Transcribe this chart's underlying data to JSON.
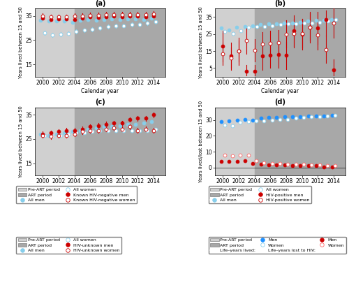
{
  "years": [
    2000,
    2001,
    2002,
    2003,
    2004,
    2005,
    2006,
    2007,
    2008,
    2009,
    2010,
    2011,
    2012,
    2013,
    2014
  ],
  "pre_art_end": 2004,
  "xlim": [
    1999,
    2015.5
  ],
  "pre_art_color": "#d0d0d0",
  "art_color": "#a8a8a8",
  "panel_a": {
    "title": "(a)",
    "ylabel": "Years lived between 15 and 50",
    "ylim": [
      10,
      38
    ],
    "yticks": [
      15,
      25,
      35
    ],
    "all_men": [
      33.2,
      32.8,
      33.0,
      32.8,
      32.2,
      33.2,
      33.5,
      33.2,
      33.5,
      33.8,
      33.5,
      33.8,
      33.8,
      33.5,
      34.0
    ],
    "all_men_lo": [
      32.8,
      32.4,
      32.6,
      32.4,
      31.8,
      32.8,
      33.1,
      32.8,
      33.1,
      33.4,
      33.1,
      33.4,
      33.4,
      33.1,
      33.6
    ],
    "all_men_hi": [
      33.6,
      33.2,
      33.4,
      33.2,
      32.6,
      33.6,
      33.9,
      33.6,
      33.9,
      34.2,
      33.9,
      34.2,
      34.2,
      33.9,
      34.4
    ],
    "all_women": [
      28.0,
      27.2,
      27.5,
      27.8,
      28.5,
      29.0,
      29.5,
      30.0,
      30.5,
      30.8,
      31.0,
      31.5,
      31.5,
      32.0,
      32.5
    ],
    "all_women_lo": [
      27.2,
      26.4,
      26.7,
      27.0,
      27.7,
      28.2,
      28.7,
      29.2,
      29.7,
      30.0,
      30.2,
      30.7,
      30.7,
      31.2,
      31.7
    ],
    "all_women_hi": [
      28.8,
      28.0,
      28.3,
      28.6,
      29.3,
      29.8,
      30.3,
      30.8,
      31.3,
      31.6,
      31.8,
      32.3,
      32.3,
      32.8,
      33.3
    ],
    "hiv_neg_men": [
      34.0,
      33.5,
      33.8,
      33.8,
      33.5,
      34.0,
      34.5,
      34.2,
      34.5,
      34.8,
      34.5,
      34.8,
      34.8,
      34.5,
      35.0
    ],
    "hiv_neg_men_lo": [
      33.5,
      33.0,
      33.3,
      33.3,
      33.0,
      33.5,
      34.0,
      33.7,
      34.0,
      34.3,
      34.0,
      34.3,
      34.3,
      34.0,
      34.5
    ],
    "hiv_neg_men_hi": [
      34.5,
      34.0,
      34.3,
      34.3,
      34.0,
      34.5,
      35.0,
      34.7,
      35.0,
      35.3,
      35.0,
      35.3,
      35.3,
      35.0,
      35.5
    ],
    "hiv_neg_women": [
      35.0,
      34.5,
      34.5,
      34.5,
      35.0,
      35.0,
      35.2,
      35.2,
      35.5,
      35.5,
      35.5,
      35.5,
      35.5,
      35.5,
      35.8
    ],
    "hiv_neg_women_lo": [
      34.0,
      33.5,
      33.5,
      33.5,
      34.0,
      34.0,
      34.2,
      34.2,
      34.5,
      34.5,
      34.5,
      34.5,
      34.5,
      34.5,
      34.8
    ],
    "hiv_neg_women_hi": [
      36.0,
      35.5,
      35.5,
      35.5,
      36.0,
      36.0,
      36.2,
      36.2,
      36.5,
      36.5,
      36.5,
      36.5,
      36.5,
      36.5,
      36.8
    ]
  },
  "panel_b": {
    "title": "(b)",
    "ylabel": "Years lived between 15 and 50",
    "ylim": [
      0,
      40
    ],
    "yticks": [
      5,
      15,
      25,
      35
    ],
    "all_men": [
      28.5,
      27.5,
      29.0,
      29.5,
      30.0,
      30.5,
      31.0,
      31.0,
      31.5,
      31.5,
      32.0,
      32.5,
      33.0,
      33.0,
      33.5
    ],
    "all_men_lo": [
      28.0,
      27.0,
      28.5,
      29.0,
      29.5,
      30.0,
      30.5,
      30.5,
      31.0,
      31.0,
      31.5,
      32.0,
      32.5,
      32.5,
      33.0
    ],
    "all_men_hi": [
      29.0,
      28.0,
      29.5,
      30.0,
      30.5,
      31.0,
      31.5,
      31.5,
      32.0,
      32.0,
      32.5,
      33.0,
      33.5,
      33.5,
      34.0
    ],
    "all_women": [
      26.5,
      25.5,
      27.0,
      29.0,
      29.5,
      29.5,
      30.0,
      30.5,
      31.0,
      31.0,
      31.5,
      31.5,
      32.0,
      32.5,
      33.5
    ],
    "all_women_lo": [
      26.0,
      25.0,
      26.5,
      28.5,
      29.0,
      29.0,
      29.5,
      30.0,
      30.5,
      30.5,
      31.0,
      31.0,
      31.5,
      32.0,
      33.0
    ],
    "all_women_hi": [
      27.0,
      26.0,
      27.5,
      29.5,
      30.0,
      30.0,
      30.5,
      31.0,
      31.5,
      31.5,
      32.0,
      32.0,
      32.5,
      33.0,
      34.0
    ],
    "hiv_pos_men": [
      18.0,
      12.0,
      15.0,
      3.0,
      3.0,
      12.0,
      12.5,
      13.0,
      12.5,
      27.0,
      25.0,
      29.0,
      28.5,
      33.5,
      4.0
    ],
    "hiv_pos_men_lo": [
      9.0,
      4.0,
      7.0,
      0.5,
      0.5,
      4.0,
      5.0,
      5.0,
      4.5,
      18.0,
      16.0,
      20.0,
      19.0,
      24.0,
      0.5
    ],
    "hiv_pos_men_hi": [
      27.0,
      20.0,
      23.0,
      7.0,
      7.0,
      20.0,
      20.0,
      21.0,
      20.5,
      36.0,
      34.0,
      38.0,
      38.0,
      39.0,
      10.0
    ],
    "hiv_pos_women": [
      13.5,
      11.0,
      15.0,
      21.0,
      15.5,
      19.0,
      19.5,
      20.0,
      25.0,
      25.5,
      25.5,
      29.0,
      24.5,
      16.0,
      31.5
    ],
    "hiv_pos_women_lo": [
      7.0,
      5.0,
      9.0,
      13.5,
      9.0,
      12.0,
      12.0,
      12.5,
      17.0,
      17.0,
      17.0,
      21.0,
      16.0,
      8.0,
      23.0
    ],
    "hiv_pos_women_hi": [
      20.0,
      17.0,
      21.0,
      28.5,
      22.0,
      26.0,
      27.0,
      27.5,
      33.0,
      34.0,
      34.0,
      37.0,
      33.0,
      24.0,
      40.0
    ]
  },
  "panel_c": {
    "title": "(c)",
    "ylabel": "Years lived between 15 and 50",
    "ylim": [
      10,
      38
    ],
    "yticks": [
      15,
      25,
      35
    ],
    "all_men": [
      27.0,
      26.5,
      27.0,
      27.5,
      28.0,
      28.5,
      29.0,
      29.5,
      30.0,
      30.0,
      30.5,
      31.0,
      31.0,
      31.5,
      32.0
    ],
    "all_men_lo": [
      26.5,
      26.0,
      26.5,
      27.0,
      27.5,
      28.0,
      28.5,
      29.0,
      29.5,
      29.5,
      30.0,
      30.5,
      30.5,
      31.0,
      31.5
    ],
    "all_men_hi": [
      27.5,
      27.0,
      27.5,
      28.0,
      28.5,
      29.0,
      29.5,
      30.0,
      30.5,
      30.5,
      31.0,
      31.5,
      31.5,
      32.0,
      32.5
    ],
    "all_women": [
      26.5,
      26.0,
      26.5,
      27.0,
      27.5,
      27.5,
      28.0,
      28.5,
      28.5,
      28.5,
      28.5,
      28.5,
      28.5,
      28.5,
      29.0
    ],
    "all_women_lo": [
      26.0,
      25.5,
      26.0,
      26.5,
      27.0,
      27.0,
      27.5,
      28.0,
      28.0,
      28.0,
      28.0,
      28.0,
      28.0,
      28.0,
      28.5
    ],
    "all_women_hi": [
      27.0,
      26.5,
      27.0,
      27.5,
      28.0,
      28.0,
      28.5,
      29.0,
      29.0,
      29.0,
      29.0,
      29.0,
      29.0,
      29.0,
      29.5
    ],
    "hiv_unk_men": [
      27.0,
      27.5,
      28.0,
      28.5,
      28.5,
      29.0,
      30.0,
      30.5,
      31.0,
      31.5,
      31.5,
      33.0,
      33.5,
      33.5,
      35.0
    ],
    "hiv_unk_men_lo": [
      26.0,
      26.5,
      27.0,
      27.5,
      27.5,
      28.0,
      29.0,
      29.5,
      30.0,
      30.5,
      30.5,
      32.0,
      32.5,
      32.5,
      34.0
    ],
    "hiv_unk_men_hi": [
      28.0,
      28.5,
      29.0,
      29.5,
      29.5,
      30.0,
      31.0,
      31.5,
      32.0,
      32.5,
      32.5,
      34.0,
      34.5,
      34.5,
      36.0
    ],
    "hiv_unk_women": [
      26.5,
      26.0,
      26.5,
      26.5,
      27.0,
      28.0,
      28.5,
      28.5,
      29.0,
      29.5,
      29.0,
      30.0,
      28.5,
      29.0,
      28.5
    ],
    "hiv_unk_women_lo": [
      25.5,
      25.0,
      25.5,
      25.5,
      26.0,
      27.0,
      27.5,
      27.5,
      28.0,
      28.5,
      28.0,
      29.0,
      27.5,
      28.0,
      27.5
    ],
    "hiv_unk_women_hi": [
      27.5,
      27.0,
      27.5,
      27.5,
      28.0,
      29.0,
      29.5,
      29.5,
      30.0,
      30.5,
      30.0,
      31.0,
      29.5,
      30.0,
      29.5
    ]
  },
  "panel_d": {
    "title": "(d)",
    "ylabel": "Years lived/lost between 15 and 50",
    "ylim": [
      -5,
      38
    ],
    "yticks": [
      0,
      10,
      20,
      30
    ],
    "ly_lived_men": [
      29.0,
      29.5,
      30.0,
      30.5,
      30.0,
      31.0,
      31.5,
      31.5,
      32.0,
      32.0,
      32.0,
      32.5,
      32.5,
      32.5,
      33.0
    ],
    "ly_lived_women": [
      27.0,
      26.5,
      28.5,
      29.0,
      29.5,
      29.5,
      30.0,
      30.5,
      30.5,
      31.0,
      31.5,
      32.0,
      32.0,
      32.5,
      33.0
    ],
    "ly_lost_men": [
      4.0,
      4.0,
      4.0,
      4.5,
      2.5,
      2.0,
      1.5,
      1.5,
      1.5,
      1.0,
      1.0,
      1.0,
      1.0,
      0.5,
      0.5
    ],
    "ly_lost_women": [
      8.0,
      7.5,
      8.0,
      8.0,
      4.5,
      3.0,
      2.5,
      2.5,
      2.0,
      2.0,
      2.0,
      1.5,
      1.5,
      1.0,
      1.0
    ]
  },
  "colors": {
    "all_men_fill": "#87CEEB",
    "all_men_line": "#87CEEB",
    "all_women_line": "#87CEEB",
    "hiv_men_fill": "#CC0000",
    "hiv_men_line": "#CC0000",
    "hiv_women_line": "#CC0000",
    "ly_lived_men": "#1E90FF",
    "ly_lived_women": "#87CEEB",
    "ly_lost_men": "#CC0000",
    "ly_lost_women": "#FF6666"
  }
}
